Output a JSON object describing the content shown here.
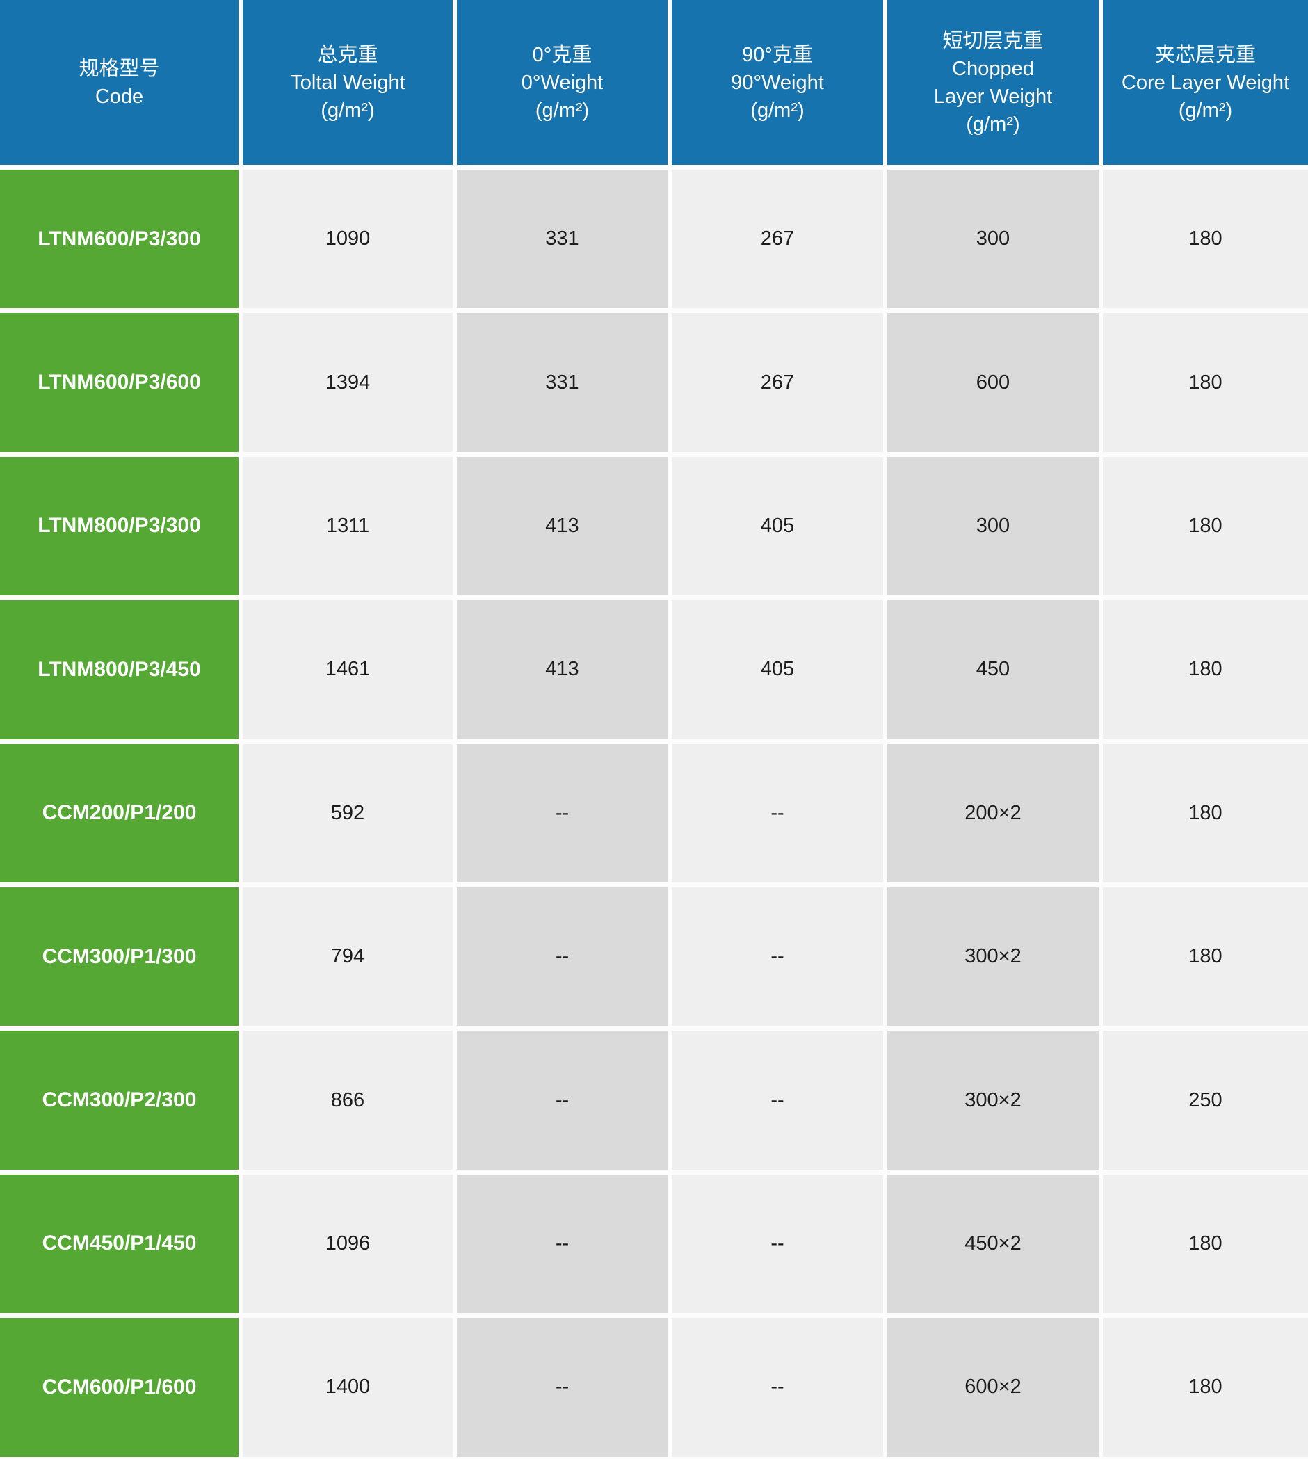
{
  "colors": {
    "header_bg": "#1673ae",
    "header_text": "#ffffff",
    "code_bg": "#55a833",
    "code_text": "#ffffff",
    "cell_light_bg": "#efefef",
    "cell_dark_bg": "#d9dad9",
    "value_text": "#1c1c1c",
    "separator": "#fcfcfc"
  },
  "table": {
    "columns": [
      {
        "id": "code",
        "lines": [
          "规格型号",
          "Code"
        ]
      },
      {
        "id": "total_weight",
        "lines": [
          "总克重",
          "Toltal Weight",
          "(g/m²)"
        ]
      },
      {
        "id": "weight_0",
        "lines": [
          "0°克重",
          "0°Weight",
          "(g/m²)"
        ]
      },
      {
        "id": "weight_90",
        "lines": [
          "90°克重",
          "90°Weight",
          "(g/m²)"
        ]
      },
      {
        "id": "chopped_layer_weight",
        "lines": [
          "短切层克重",
          "Chopped",
          "Layer Weight",
          "(g/m²)"
        ]
      },
      {
        "id": "core_layer_weight",
        "lines": [
          "夹芯层克重",
          "Core Layer Weight",
          "(g/m²)"
        ]
      }
    ],
    "rows": [
      {
        "code": "LTNM600/P3/300",
        "total_weight": "1090",
        "weight_0": "331",
        "weight_90": "267",
        "chopped_layer_weight": "300",
        "core_layer_weight": "180"
      },
      {
        "code": "LTNM600/P3/600",
        "total_weight": "1394",
        "weight_0": "331",
        "weight_90": "267",
        "chopped_layer_weight": "600",
        "core_layer_weight": "180"
      },
      {
        "code": "LTNM800/P3/300",
        "total_weight": "1311",
        "weight_0": "413",
        "weight_90": "405",
        "chopped_layer_weight": "300",
        "core_layer_weight": "180"
      },
      {
        "code": "LTNM800/P3/450",
        "total_weight": "1461",
        "weight_0": "413",
        "weight_90": "405",
        "chopped_layer_weight": "450",
        "core_layer_weight": "180"
      },
      {
        "code": "CCM200/P1/200",
        "total_weight": "592",
        "weight_0": "--",
        "weight_90": "--",
        "chopped_layer_weight": "200×2",
        "core_layer_weight": "180"
      },
      {
        "code": "CCM300/P1/300",
        "total_weight": "794",
        "weight_0": "--",
        "weight_90": "--",
        "chopped_layer_weight": "300×2",
        "core_layer_weight": "180"
      },
      {
        "code": "CCM300/P2/300",
        "total_weight": "866",
        "weight_0": "--",
        "weight_90": "--",
        "chopped_layer_weight": "300×2",
        "core_layer_weight": "250"
      },
      {
        "code": "CCM450/P1/450",
        "total_weight": "1096",
        "weight_0": "--",
        "weight_90": "--",
        "chopped_layer_weight": "450×2",
        "core_layer_weight": "180"
      },
      {
        "code": "CCM600/P1/600",
        "total_weight": "1400",
        "weight_0": "--",
        "weight_90": "--",
        "chopped_layer_weight": "600×2",
        "core_layer_weight": "180"
      }
    ]
  }
}
